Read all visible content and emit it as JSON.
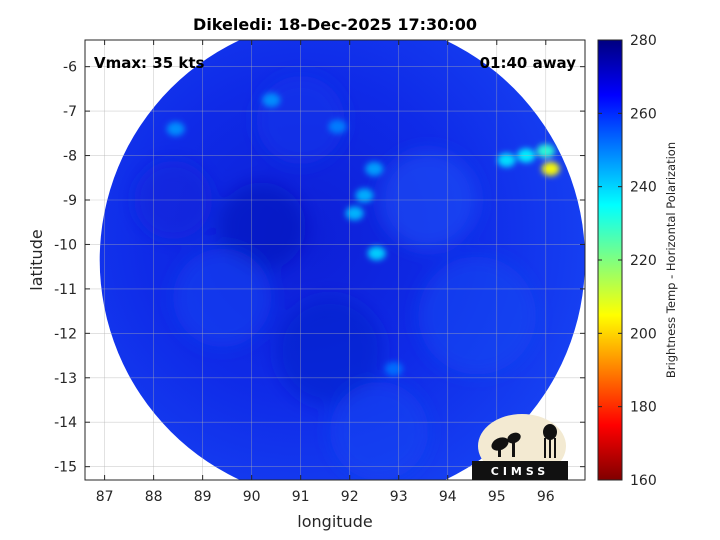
{
  "chart_data": {
    "type": "heatmap",
    "title": "Dikeledi: 18-Dec-2025 17:30:00",
    "annotations": {
      "vmax": "Vmax: 35 kts",
      "time_away": "01:40 away"
    },
    "xlabel": "longitude",
    "ylabel": "latitude",
    "xlim": [
      86.6,
      96.8
    ],
    "ylim": [
      -15.3,
      -5.4
    ],
    "x_ticks": [
      {
        "value": 87,
        "label": "87"
      },
      {
        "value": 88,
        "label": "88"
      },
      {
        "value": 89,
        "label": "89"
      },
      {
        "value": 90,
        "label": "90"
      },
      {
        "value": 91,
        "label": "91"
      },
      {
        "value": 92,
        "label": "92"
      },
      {
        "value": 93,
        "label": "93"
      },
      {
        "value": 94,
        "label": "94"
      },
      {
        "value": 95,
        "label": "95"
      },
      {
        "value": 96,
        "label": "96"
      }
    ],
    "y_ticks": [
      {
        "value": -6,
        "label": "-6"
      },
      {
        "value": -7,
        "label": "-7"
      },
      {
        "value": -8,
        "label": "-8"
      },
      {
        "value": -9,
        "label": "-9"
      },
      {
        "value": -10,
        "label": "-10"
      },
      {
        "value": -11,
        "label": "-11"
      },
      {
        "value": -12,
        "label": "-12"
      },
      {
        "value": -13,
        "label": "-13"
      },
      {
        "value": -14,
        "label": "-14"
      },
      {
        "value": -15,
        "label": "-15"
      }
    ],
    "grid": true,
    "colorbar": {
      "label": "Brightness Temp - Horizontal Polarization",
      "range": [
        160,
        280
      ],
      "ticks": [
        {
          "value": 160,
          "label": "160"
        },
        {
          "value": 180,
          "label": "180"
        },
        {
          "value": 200,
          "label": "200"
        },
        {
          "value": 220,
          "label": "220"
        },
        {
          "value": 240,
          "label": "240"
        },
        {
          "value": 260,
          "label": "260"
        },
        {
          "value": 280,
          "label": "280"
        }
      ],
      "colormap": "jet",
      "colors": [
        "#800000",
        "#ff0000",
        "#ff8000",
        "#ffff00",
        "#80ff80",
        "#00ffff",
        "#0080ff",
        "#0000ff",
        "#000080"
      ]
    },
    "swath": {
      "center": [
        91.85,
        -10.35
      ],
      "radius_deg": 4.95,
      "background_temp": 263
    },
    "features": [
      {
        "lon": 88.45,
        "lat": -7.4,
        "temp": 248
      },
      {
        "lon": 90.4,
        "lat": -6.75,
        "temp": 248
      },
      {
        "lon": 91.75,
        "lat": -7.35,
        "temp": 250
      },
      {
        "lon": 92.5,
        "lat": -8.3,
        "temp": 246
      },
      {
        "lon": 92.3,
        "lat": -8.9,
        "temp": 244
      },
      {
        "lon": 92.1,
        "lat": -9.3,
        "temp": 243
      },
      {
        "lon": 92.55,
        "lat": -10.2,
        "temp": 240
      },
      {
        "lon": 92.9,
        "lat": -12.8,
        "temp": 252
      },
      {
        "lon": 95.2,
        "lat": -8.1,
        "temp": 238
      },
      {
        "lon": 95.6,
        "lat": -8.0,
        "temp": 236
      },
      {
        "lon": 96.0,
        "lat": -7.9,
        "temp": 230
      },
      {
        "lon": 96.1,
        "lat": -8.3,
        "temp": 205
      }
    ],
    "logo": "CIMSS"
  }
}
